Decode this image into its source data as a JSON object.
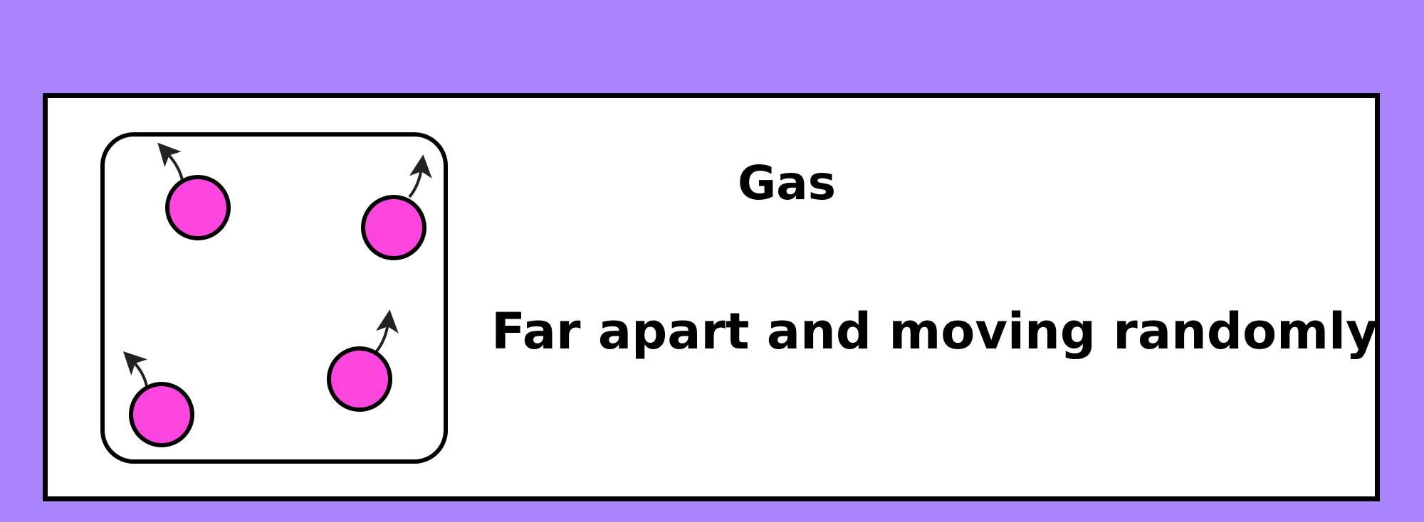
{
  "state": {
    "title": "Gas",
    "description": "Far apart and moving randomly"
  },
  "colors": {
    "background": "#a984fd",
    "card": "#ffffff",
    "particle": "#ff45e0",
    "outline": "#000000",
    "arrow": "#222222"
  },
  "diagram": {
    "particles": [
      {
        "name": "particle-top-left",
        "arrow": "up-left"
      },
      {
        "name": "particle-top-right",
        "arrow": "up-right"
      },
      {
        "name": "particle-bottom-left",
        "arrow": "up-left"
      },
      {
        "name": "particle-bottom-right",
        "arrow": "up-right"
      }
    ]
  }
}
